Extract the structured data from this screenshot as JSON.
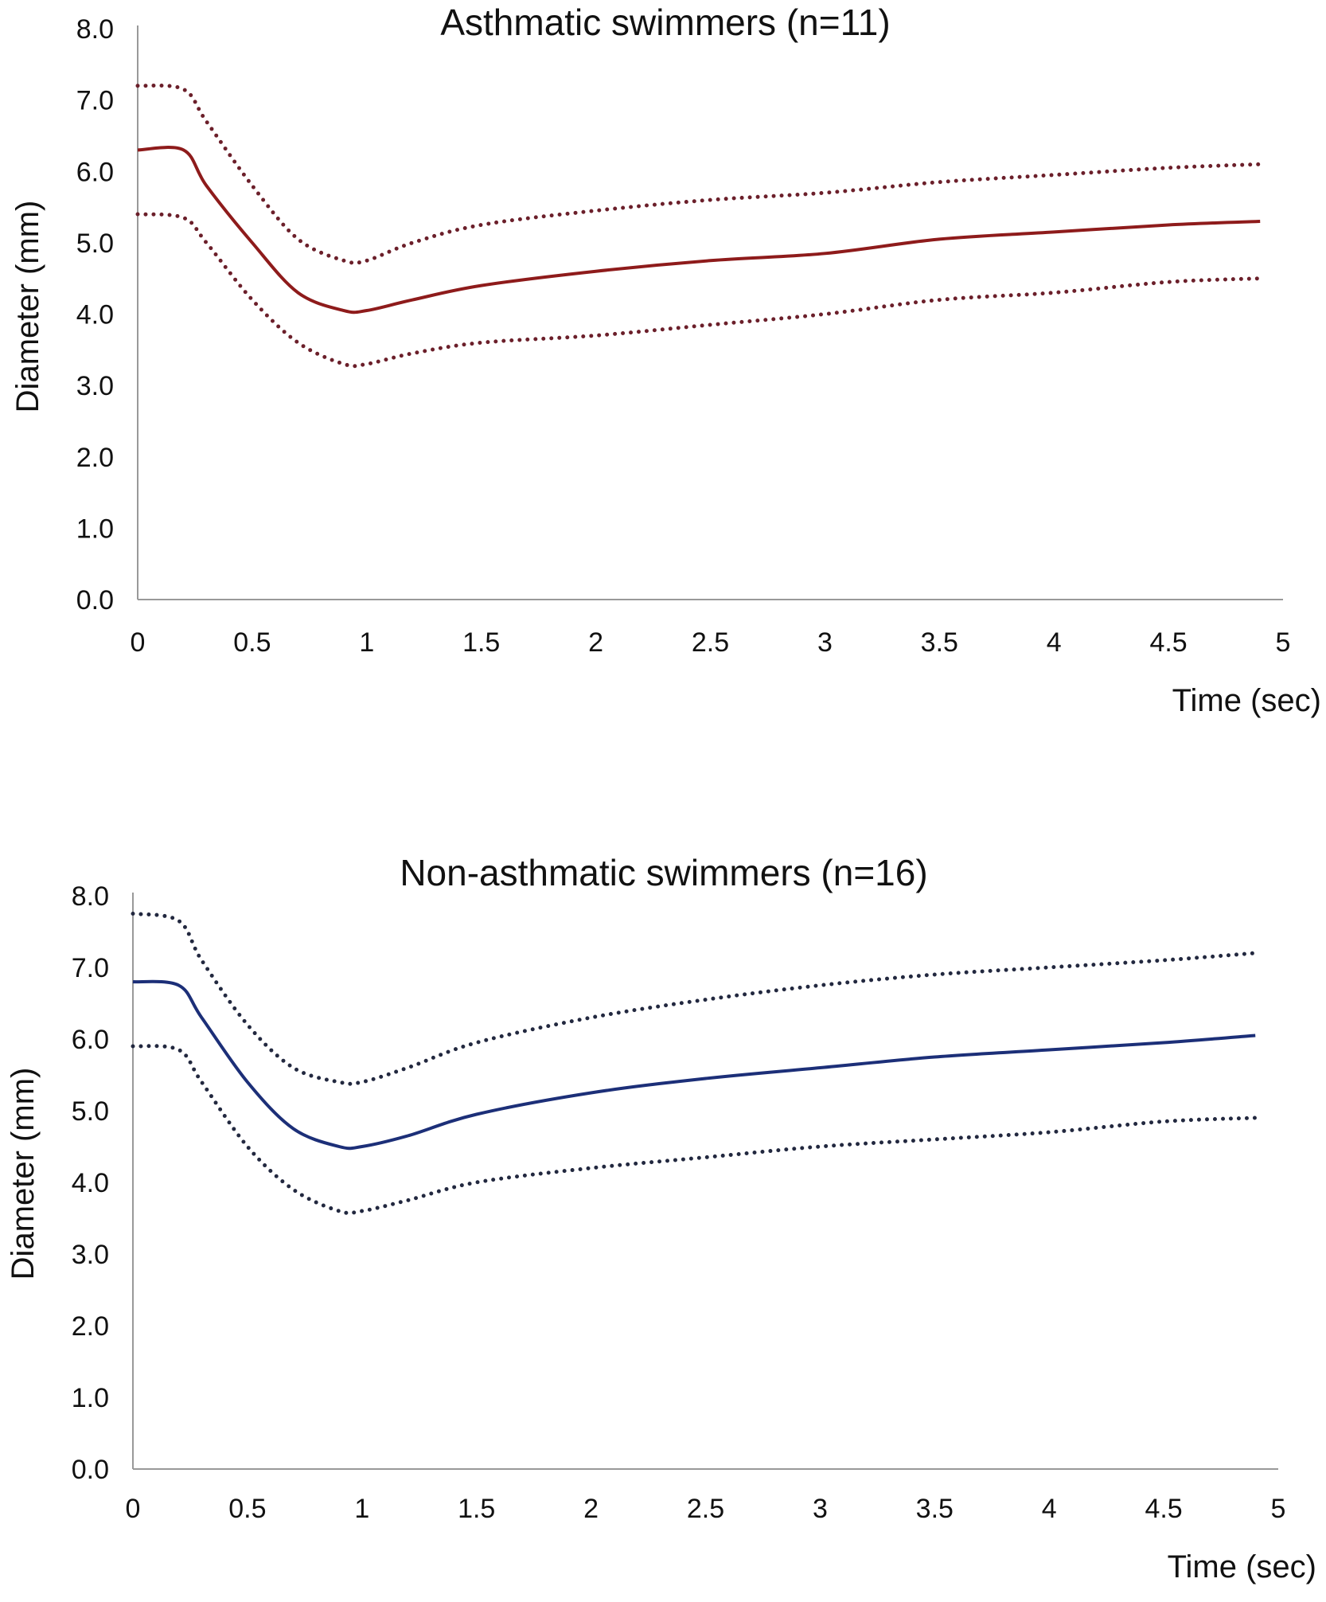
{
  "chart_data": [
    {
      "type": "line",
      "title": "Asthmatic swimmers (n=11)",
      "xlabel": "Time (sec)",
      "ylabel": "Diameter (mm)",
      "xlim": [
        0,
        5
      ],
      "ylim": [
        0,
        8
      ],
      "xticks": [
        "0",
        "0.5",
        "1",
        "1.5",
        "2",
        "2.5",
        "3",
        "3.5",
        "4",
        "4.5",
        "5"
      ],
      "yticks": [
        "0.0",
        "1.0",
        "2.0",
        "3.0",
        "4.0",
        "5.0",
        "6.0",
        "7.0",
        "8.0"
      ],
      "grid": false,
      "x": [
        0,
        0.2,
        0.3,
        0.5,
        0.7,
        0.9,
        1.0,
        1.2,
        1.5,
        2,
        2.5,
        3,
        3.5,
        4,
        4.5,
        4.9
      ],
      "series": [
        {
          "name": "upper",
          "style": "dotted",
          "color": "#6b1f2a",
          "values": [
            7.2,
            7.15,
            6.7,
            5.8,
            5.05,
            4.75,
            4.75,
            5.0,
            5.25,
            5.45,
            5.6,
            5.7,
            5.85,
            5.95,
            6.05,
            6.1
          ]
        },
        {
          "name": "mean",
          "style": "solid",
          "color": "#8e1b1b",
          "values": [
            6.3,
            6.3,
            5.8,
            5.0,
            4.3,
            4.05,
            4.05,
            4.2,
            4.4,
            4.6,
            4.75,
            4.85,
            5.05,
            5.15,
            5.25,
            5.3
          ]
        },
        {
          "name": "lower",
          "style": "dotted",
          "color": "#6b1f2a",
          "values": [
            5.4,
            5.35,
            5.0,
            4.2,
            3.6,
            3.3,
            3.3,
            3.45,
            3.6,
            3.7,
            3.85,
            4.0,
            4.2,
            4.3,
            4.45,
            4.5
          ]
        }
      ]
    },
    {
      "type": "line",
      "title": "Non-asthmatic swimmers (n=16)",
      "xlabel": "Time (sec)",
      "ylabel": "Diameter (mm)",
      "xlim": [
        0,
        5
      ],
      "ylim": [
        0,
        8
      ],
      "xticks": [
        "0",
        "0.5",
        "1",
        "1.5",
        "2",
        "2.5",
        "3",
        "3.5",
        "4",
        "4.5",
        "5"
      ],
      "yticks": [
        "0.0",
        "1.0",
        "2.0",
        "3.0",
        "4.0",
        "5.0",
        "6.0",
        "7.0",
        "8.0"
      ],
      "grid": false,
      "x": [
        0,
        0.2,
        0.3,
        0.5,
        0.7,
        0.9,
        1.0,
        1.2,
        1.5,
        2,
        2.5,
        3,
        3.5,
        4,
        4.5,
        4.9
      ],
      "series": [
        {
          "name": "upper",
          "style": "dotted",
          "color": "#22283f",
          "values": [
            7.75,
            7.65,
            7.1,
            6.2,
            5.6,
            5.4,
            5.4,
            5.6,
            5.95,
            6.3,
            6.55,
            6.75,
            6.9,
            7.0,
            7.1,
            7.2
          ]
        },
        {
          "name": "mean",
          "style": "solid",
          "color": "#1c2f78",
          "values": [
            6.8,
            6.75,
            6.3,
            5.4,
            4.75,
            4.5,
            4.5,
            4.65,
            4.95,
            5.25,
            5.45,
            5.6,
            5.75,
            5.85,
            5.95,
            6.05
          ]
        },
        {
          "name": "lower",
          "style": "dotted",
          "color": "#22283f",
          "values": [
            5.9,
            5.85,
            5.4,
            4.5,
            3.9,
            3.6,
            3.6,
            3.75,
            4.0,
            4.2,
            4.35,
            4.5,
            4.6,
            4.7,
            4.85,
            4.9
          ]
        }
      ]
    }
  ]
}
